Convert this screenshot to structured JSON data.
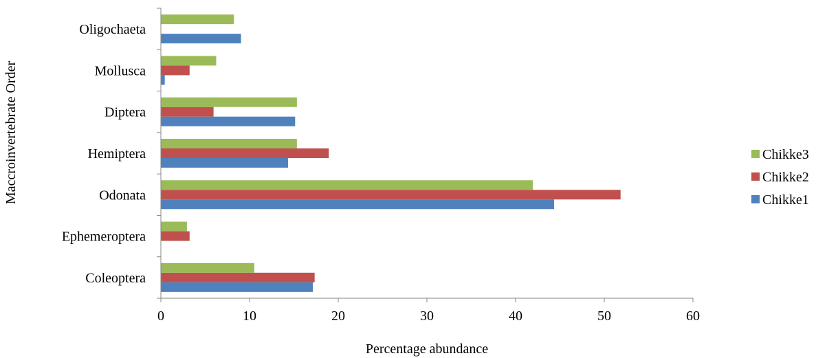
{
  "chart_data": {
    "type": "bar",
    "orientation": "horizontal",
    "title": "",
    "xlabel": "Percentage abundance",
    "ylabel": "Maccroinvertebrate Order",
    "xlim": [
      0,
      60
    ],
    "xticks": [
      0,
      10,
      20,
      30,
      40,
      50,
      60
    ],
    "grid": false,
    "legend_position": "right",
    "categories": [
      "Coleoptera",
      "Ephemeroptera",
      "Odonata",
      "Hemiptera",
      "Diptera",
      "Mollusca",
      "Oligochaeta"
    ],
    "series": [
      {
        "name": "Chikke1",
        "color": "#4F81BD",
        "values": [
          17.1,
          0,
          44.3,
          14.3,
          15.1,
          0.4,
          9.0
        ]
      },
      {
        "name": "Chikke2",
        "color": "#C0504D",
        "values": [
          17.3,
          3.2,
          51.8,
          18.9,
          5.9,
          3.2,
          0
        ]
      },
      {
        "name": "Chikke3",
        "color": "#9BBB59",
        "values": [
          10.5,
          2.9,
          41.9,
          15.3,
          15.3,
          6.2,
          8.2
        ]
      }
    ],
    "legend_order": [
      "Chikke3",
      "Chikke2",
      "Chikke1"
    ]
  }
}
